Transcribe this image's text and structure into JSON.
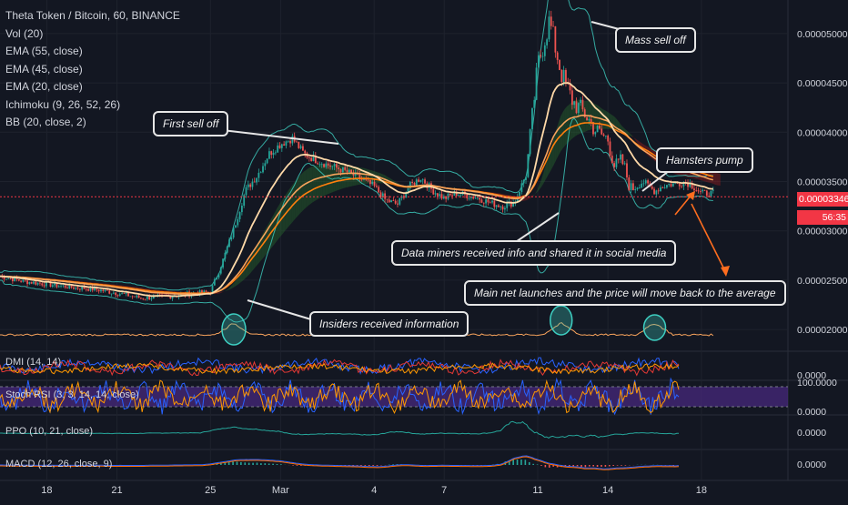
{
  "legend": {
    "title": "Theta Token / Bitcoin, 60, BINANCE",
    "items": [
      "Vol (20)",
      "EMA (55, close)",
      "EMA (45, close)",
      "EMA (20, close)",
      "Ichimoku (9, 26, 52, 26)",
      "BB (20, close, 2)"
    ]
  },
  "panes": {
    "dmi": "DMI (14, 14)",
    "stoch": "Stoch RSI (3, 3, 14, 14, close)",
    "ppo": "PPO (10, 21, close)",
    "macd": "MACD (12, 26, close, 9)"
  },
  "callouts": {
    "first_sell": "First sell off",
    "mass_sell": "Mass sell off",
    "hamsters": "Hamsters pump",
    "miners": "Data miners received info and shared it in social media",
    "mainnet": "Main net launches and the price will move back to the average",
    "insiders": "Insiders received information"
  },
  "price_axis": {
    "ticks": [
      "0.00005000",
      "0.00004500",
      "0.00004000",
      "0.00003500",
      "0.00003000",
      "0.00002500",
      "0.00002000"
    ],
    "current_price": "0.00003346",
    "countdown": "56:35",
    "pane_ticks": {
      "dmi": "0.0000",
      "stoch_top": "100.0000",
      "stoch_bottom": "0.0000",
      "ppo": "0.0000",
      "macd": "0.0000"
    }
  },
  "time_axis": [
    "18",
    "21",
    "25",
    "Mar",
    "4",
    "7",
    "11",
    "14",
    "18"
  ],
  "colors": {
    "background": "#131722",
    "price_line": "#f23645",
    "ema20": "#ffd9a8",
    "ema45": "#f7a35c",
    "ema55": "#ff7f0e",
    "bollinger": "#3ecfc2",
    "cloud_bull": "#2e7d32",
    "cloud_bear": "#b71c1c",
    "dmi_plus": "#2962ff",
    "dmi_minus": "#e53935",
    "adx": "#ff9800",
    "stoch_band": "#4a2a82",
    "annotation_arrow": "#ff6d1f"
  },
  "chart_data": {
    "type": "line",
    "title": "Theta Token / Bitcoin, 60, BINANCE",
    "xlabel": "",
    "ylabel": "",
    "x_ticks": [
      "18",
      "21",
      "25",
      "Mar",
      "4",
      "7",
      "11",
      "14",
      "18"
    ],
    "ylim": [
      1.78e-05,
      5.34e-05
    ],
    "y_ticks": [
      2e-05,
      2.5e-05,
      3e-05,
      3.5e-05,
      4e-05,
      4.5e-05,
      5e-05
    ],
    "current_price": 3.346e-05,
    "grid": true,
    "series": [
      {
        "name": "close",
        "x": [
          16.0,
          17.0,
          18.0,
          19.0,
          20.0,
          21.0,
          22.0,
          23.0,
          24.0,
          25.0,
          25.5,
          26.0,
          26.5,
          27.0,
          27.5,
          28.0,
          28.5,
          29.0,
          29.5,
          30.0,
          30.5,
          31.0,
          32.0,
          32.5,
          33.0,
          33.5,
          34.0,
          34.5,
          35.0,
          35.5,
          36.0,
          36.5,
          37.0,
          37.5,
          38.0,
          38.5,
          39.0,
          39.5,
          40.0,
          40.5,
          41.0,
          41.5,
          42.0,
          42.3,
          42.6,
          43.0,
          43.5,
          44.0,
          44.3,
          44.6,
          45.0,
          45.3,
          45.6,
          46.0,
          46.5
        ],
        "values": [
          2.54e-05,
          2.49e-05,
          2.46e-05,
          2.43e-05,
          2.41e-05,
          2.37e-05,
          2.32e-05,
          2.33e-05,
          2.36e-05,
          2.38e-05,
          2.68e-05,
          3.02e-05,
          3.41e-05,
          3.56e-05,
          3.78e-05,
          3.88e-05,
          3.94e-05,
          3.78e-05,
          3.72e-05,
          3.67e-05,
          3.63e-05,
          3.58e-05,
          3.45e-05,
          3.31e-05,
          3.27e-05,
          3.45e-05,
          3.54e-05,
          3.41e-05,
          3.33e-05,
          3.38e-05,
          3.36e-05,
          3.33e-05,
          3.28e-05,
          3.25e-05,
          3.29e-05,
          3.57e-05,
          4.68e-05,
          5.13e-05,
          4.6e-05,
          4.31e-05,
          4.19e-05,
          4.01e-05,
          3.93e-05,
          3.64e-05,
          3.71e-05,
          3.41e-05,
          3.5e-05,
          3.4e-05,
          3.45e-05,
          3.47e-05,
          3.48e-05,
          3.5e-05,
          3.46e-05,
          3.38e-05,
          3.38e-05
        ]
      }
    ],
    "volume_spikes_x": [
      26.0,
      40.0,
      44.0
    ],
    "panes": [
      "DMI (14, 14)",
      "Stoch RSI (3, 3, 14, 14, close)",
      "PPO (10, 21, close)",
      "MACD (12, 26, close, 9)"
    ]
  }
}
